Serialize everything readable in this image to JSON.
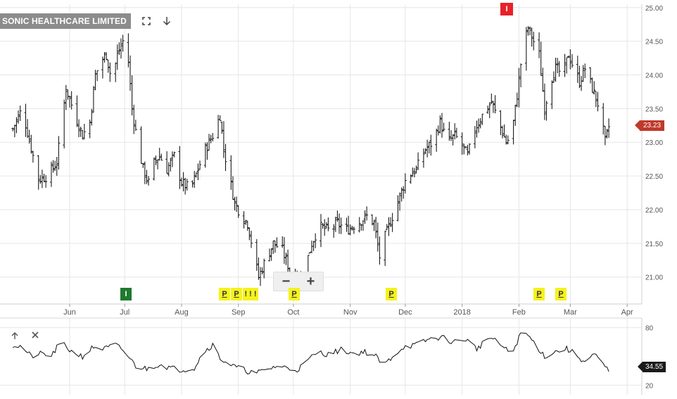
{
  "header": {
    "title": "SONIC HEALTHCARE LIMITED",
    "fullscreen_icon": "expand-icon",
    "download_icon": "arrow-down-icon"
  },
  "zoom": {
    "minus_label": "−",
    "plus_label": "+"
  },
  "price_label": "23.23",
  "oscillator_label": "34.55",
  "events": {
    "jul_i": "I",
    "sep_p1": "P",
    "sep_p2": "P",
    "sep_dots": "! ! !",
    "oct_p": "P",
    "dec_p": "P",
    "feb_i": "I",
    "feb_p": "P",
    "mar_p": "P"
  },
  "colors": {
    "bar": "#1a1a1a",
    "grid": "#e6e6e6",
    "last_price": "#c0392b",
    "earnings_marker": "#f5f21d",
    "insider_buy": "#1f7a2e",
    "insider_sell": "#e8202a"
  },
  "chart_data": [
    {
      "type": "ohlc",
      "title": "SONIC HEALTHCARE LIMITED",
      "x_ticks": [
        "Jun",
        "Jul",
        "Aug",
        "Sep",
        "Oct",
        "Nov",
        "Dec",
        "2018",
        "Feb",
        "Mar",
        "Apr"
      ],
      "y_ticks": [
        "21.00",
        "21.50",
        "22.00",
        "22.50",
        "23.00",
        "23.50",
        "24.00",
        "24.50",
        "25.00"
      ],
      "ylim": [
        20.6,
        25.05
      ],
      "grid": true,
      "last_value": 23.23,
      "anchors": [
        [
          "2017-05-01",
          23.2
        ],
        [
          "2017-05-06",
          23.5
        ],
        [
          "2017-05-12",
          22.8
        ],
        [
          "2017-05-15",
          22.45
        ],
        [
          "2017-05-20",
          22.5
        ],
        [
          "2017-05-25",
          22.7
        ],
        [
          "2017-05-30",
          23.8
        ],
        [
          "2017-06-04",
          23.4
        ],
        [
          "2017-06-08",
          23.1
        ],
        [
          "2017-06-12",
          23.3
        ],
        [
          "2017-06-15",
          24.0
        ],
        [
          "2017-06-18",
          24.2
        ],
        [
          "2017-06-21",
          24.3
        ],
        [
          "2017-06-24",
          23.9
        ],
        [
          "2017-06-27",
          24.3
        ],
        [
          "2017-06-30",
          24.5
        ],
        [
          "2017-07-03",
          24.2
        ],
        [
          "2017-07-05",
          23.5
        ],
        [
          "2017-07-08",
          23.0
        ],
        [
          "2017-07-11",
          22.6
        ],
        [
          "2017-07-14",
          22.4
        ],
        [
          "2017-07-17",
          22.7
        ],
        [
          "2017-07-20",
          22.8
        ],
        [
          "2017-07-24",
          22.6
        ],
        [
          "2017-07-28",
          22.8
        ],
        [
          "2017-08-01",
          22.4
        ],
        [
          "2017-08-06",
          22.3
        ],
        [
          "2017-08-10",
          22.6
        ],
        [
          "2017-08-14",
          22.9
        ],
        [
          "2017-08-18",
          23.1
        ],
        [
          "2017-08-22",
          23.4
        ],
        [
          "2017-08-24",
          22.9
        ],
        [
          "2017-08-27",
          22.5
        ],
        [
          "2017-08-30",
          22.1
        ],
        [
          "2017-09-03",
          21.9
        ],
        [
          "2017-09-06",
          21.8
        ],
        [
          "2017-09-09",
          21.4
        ],
        [
          "2017-09-12",
          21.0
        ],
        [
          "2017-09-15",
          21.2
        ],
        [
          "2017-09-20",
          21.5
        ],
        [
          "2017-09-25",
          21.4
        ],
        [
          "2017-09-29",
          21.1
        ],
        [
          "2017-10-02",
          21.0
        ],
        [
          "2017-10-05",
          20.95
        ],
        [
          "2017-10-08",
          21.2
        ],
        [
          "2017-10-11",
          21.5
        ],
        [
          "2017-10-15",
          21.75
        ],
        [
          "2017-10-20",
          21.7
        ],
        [
          "2017-10-25",
          21.8
        ],
        [
          "2017-10-30",
          21.7
        ],
        [
          "2017-11-05",
          21.8
        ],
        [
          "2017-11-10",
          21.9
        ],
        [
          "2017-11-14",
          21.8
        ],
        [
          "2017-11-17",
          21.3
        ],
        [
          "2017-11-20",
          21.6
        ],
        [
          "2017-11-24",
          21.9
        ],
        [
          "2017-11-28",
          22.2
        ],
        [
          "2017-12-02",
          22.5
        ],
        [
          "2017-12-07",
          22.6
        ],
        [
          "2017-12-12",
          22.9
        ],
        [
          "2017-12-16",
          23.0
        ],
        [
          "2017-12-20",
          23.3
        ],
        [
          "2017-12-24",
          23.0
        ],
        [
          "2017-12-28",
          23.1
        ],
        [
          "2017-12-31",
          23.0
        ],
        [
          "2018-01-04",
          22.8
        ],
        [
          "2018-01-08",
          23.2
        ],
        [
          "2018-01-12",
          23.4
        ],
        [
          "2018-01-17",
          23.6
        ],
        [
          "2018-01-21",
          23.3
        ],
        [
          "2018-01-25",
          23.0
        ],
        [
          "2018-01-28",
          23.1
        ],
        [
          "2018-01-31",
          23.7
        ],
        [
          "2018-02-03",
          24.4
        ],
        [
          "2018-02-06",
          24.7
        ],
        [
          "2018-02-09",
          24.5
        ],
        [
          "2018-02-12",
          24.3
        ],
        [
          "2018-02-15",
          23.5
        ],
        [
          "2018-02-18",
          23.9
        ],
        [
          "2018-02-21",
          24.1
        ],
        [
          "2018-02-25",
          24.0
        ],
        [
          "2018-02-28",
          24.3
        ],
        [
          "2018-03-03",
          24.1
        ],
        [
          "2018-03-06",
          23.9
        ],
        [
          "2018-03-09",
          24.1
        ],
        [
          "2018-03-13",
          23.8
        ],
        [
          "2018-03-17",
          23.5
        ],
        [
          "2018-03-20",
          23.0
        ],
        [
          "2018-03-22",
          23.23
        ]
      ]
    },
    {
      "type": "line",
      "title": "",
      "y_ticks": [
        "20",
        "80"
      ],
      "ylim": [
        10,
        90
      ],
      "last_value": 34.55,
      "anchors": [
        [
          "2017-05-01",
          62
        ],
        [
          "2017-05-06",
          60
        ],
        [
          "2017-05-11",
          50
        ],
        [
          "2017-05-17",
          53
        ],
        [
          "2017-05-22",
          50
        ],
        [
          "2017-05-27",
          65
        ],
        [
          "2017-06-02",
          55
        ],
        [
          "2017-06-08",
          50
        ],
        [
          "2017-06-14",
          60
        ],
        [
          "2017-06-20",
          58
        ],
        [
          "2017-06-26",
          62
        ],
        [
          "2017-07-01",
          55
        ],
        [
          "2017-07-07",
          40
        ],
        [
          "2017-07-13",
          37
        ],
        [
          "2017-07-20",
          42
        ],
        [
          "2017-07-26",
          38
        ],
        [
          "2017-08-01",
          36
        ],
        [
          "2017-08-08",
          38
        ],
        [
          "2017-08-13",
          55
        ],
        [
          "2017-08-18",
          62
        ],
        [
          "2017-08-22",
          48
        ],
        [
          "2017-08-29",
          40
        ],
        [
          "2017-09-04",
          36
        ],
        [
          "2017-09-10",
          32
        ],
        [
          "2017-09-16",
          36
        ],
        [
          "2017-09-22",
          40
        ],
        [
          "2017-09-28",
          38
        ],
        [
          "2017-10-03",
          36
        ],
        [
          "2017-10-08",
          44
        ],
        [
          "2017-10-14",
          55
        ],
        [
          "2017-10-20",
          52
        ],
        [
          "2017-10-27",
          57
        ],
        [
          "2017-11-03",
          53
        ],
        [
          "2017-11-09",
          55
        ],
        [
          "2017-11-15",
          50
        ],
        [
          "2017-11-19",
          40
        ],
        [
          "2017-11-24",
          50
        ],
        [
          "2017-11-30",
          60
        ],
        [
          "2017-12-07",
          62
        ],
        [
          "2017-12-14",
          68
        ],
        [
          "2017-12-21",
          70
        ],
        [
          "2017-12-27",
          65
        ],
        [
          "2018-01-03",
          68
        ],
        [
          "2018-01-09",
          58
        ],
        [
          "2018-01-16",
          70
        ],
        [
          "2018-01-22",
          62
        ],
        [
          "2018-01-28",
          52
        ],
        [
          "2018-02-03",
          78
        ],
        [
          "2018-02-09",
          65
        ],
        [
          "2018-02-15",
          50
        ],
        [
          "2018-02-21",
          55
        ],
        [
          "2018-02-27",
          58
        ],
        [
          "2018-03-04",
          52
        ],
        [
          "2018-03-09",
          44
        ],
        [
          "2018-03-14",
          52
        ],
        [
          "2018-03-22",
          34.55
        ]
      ]
    }
  ]
}
